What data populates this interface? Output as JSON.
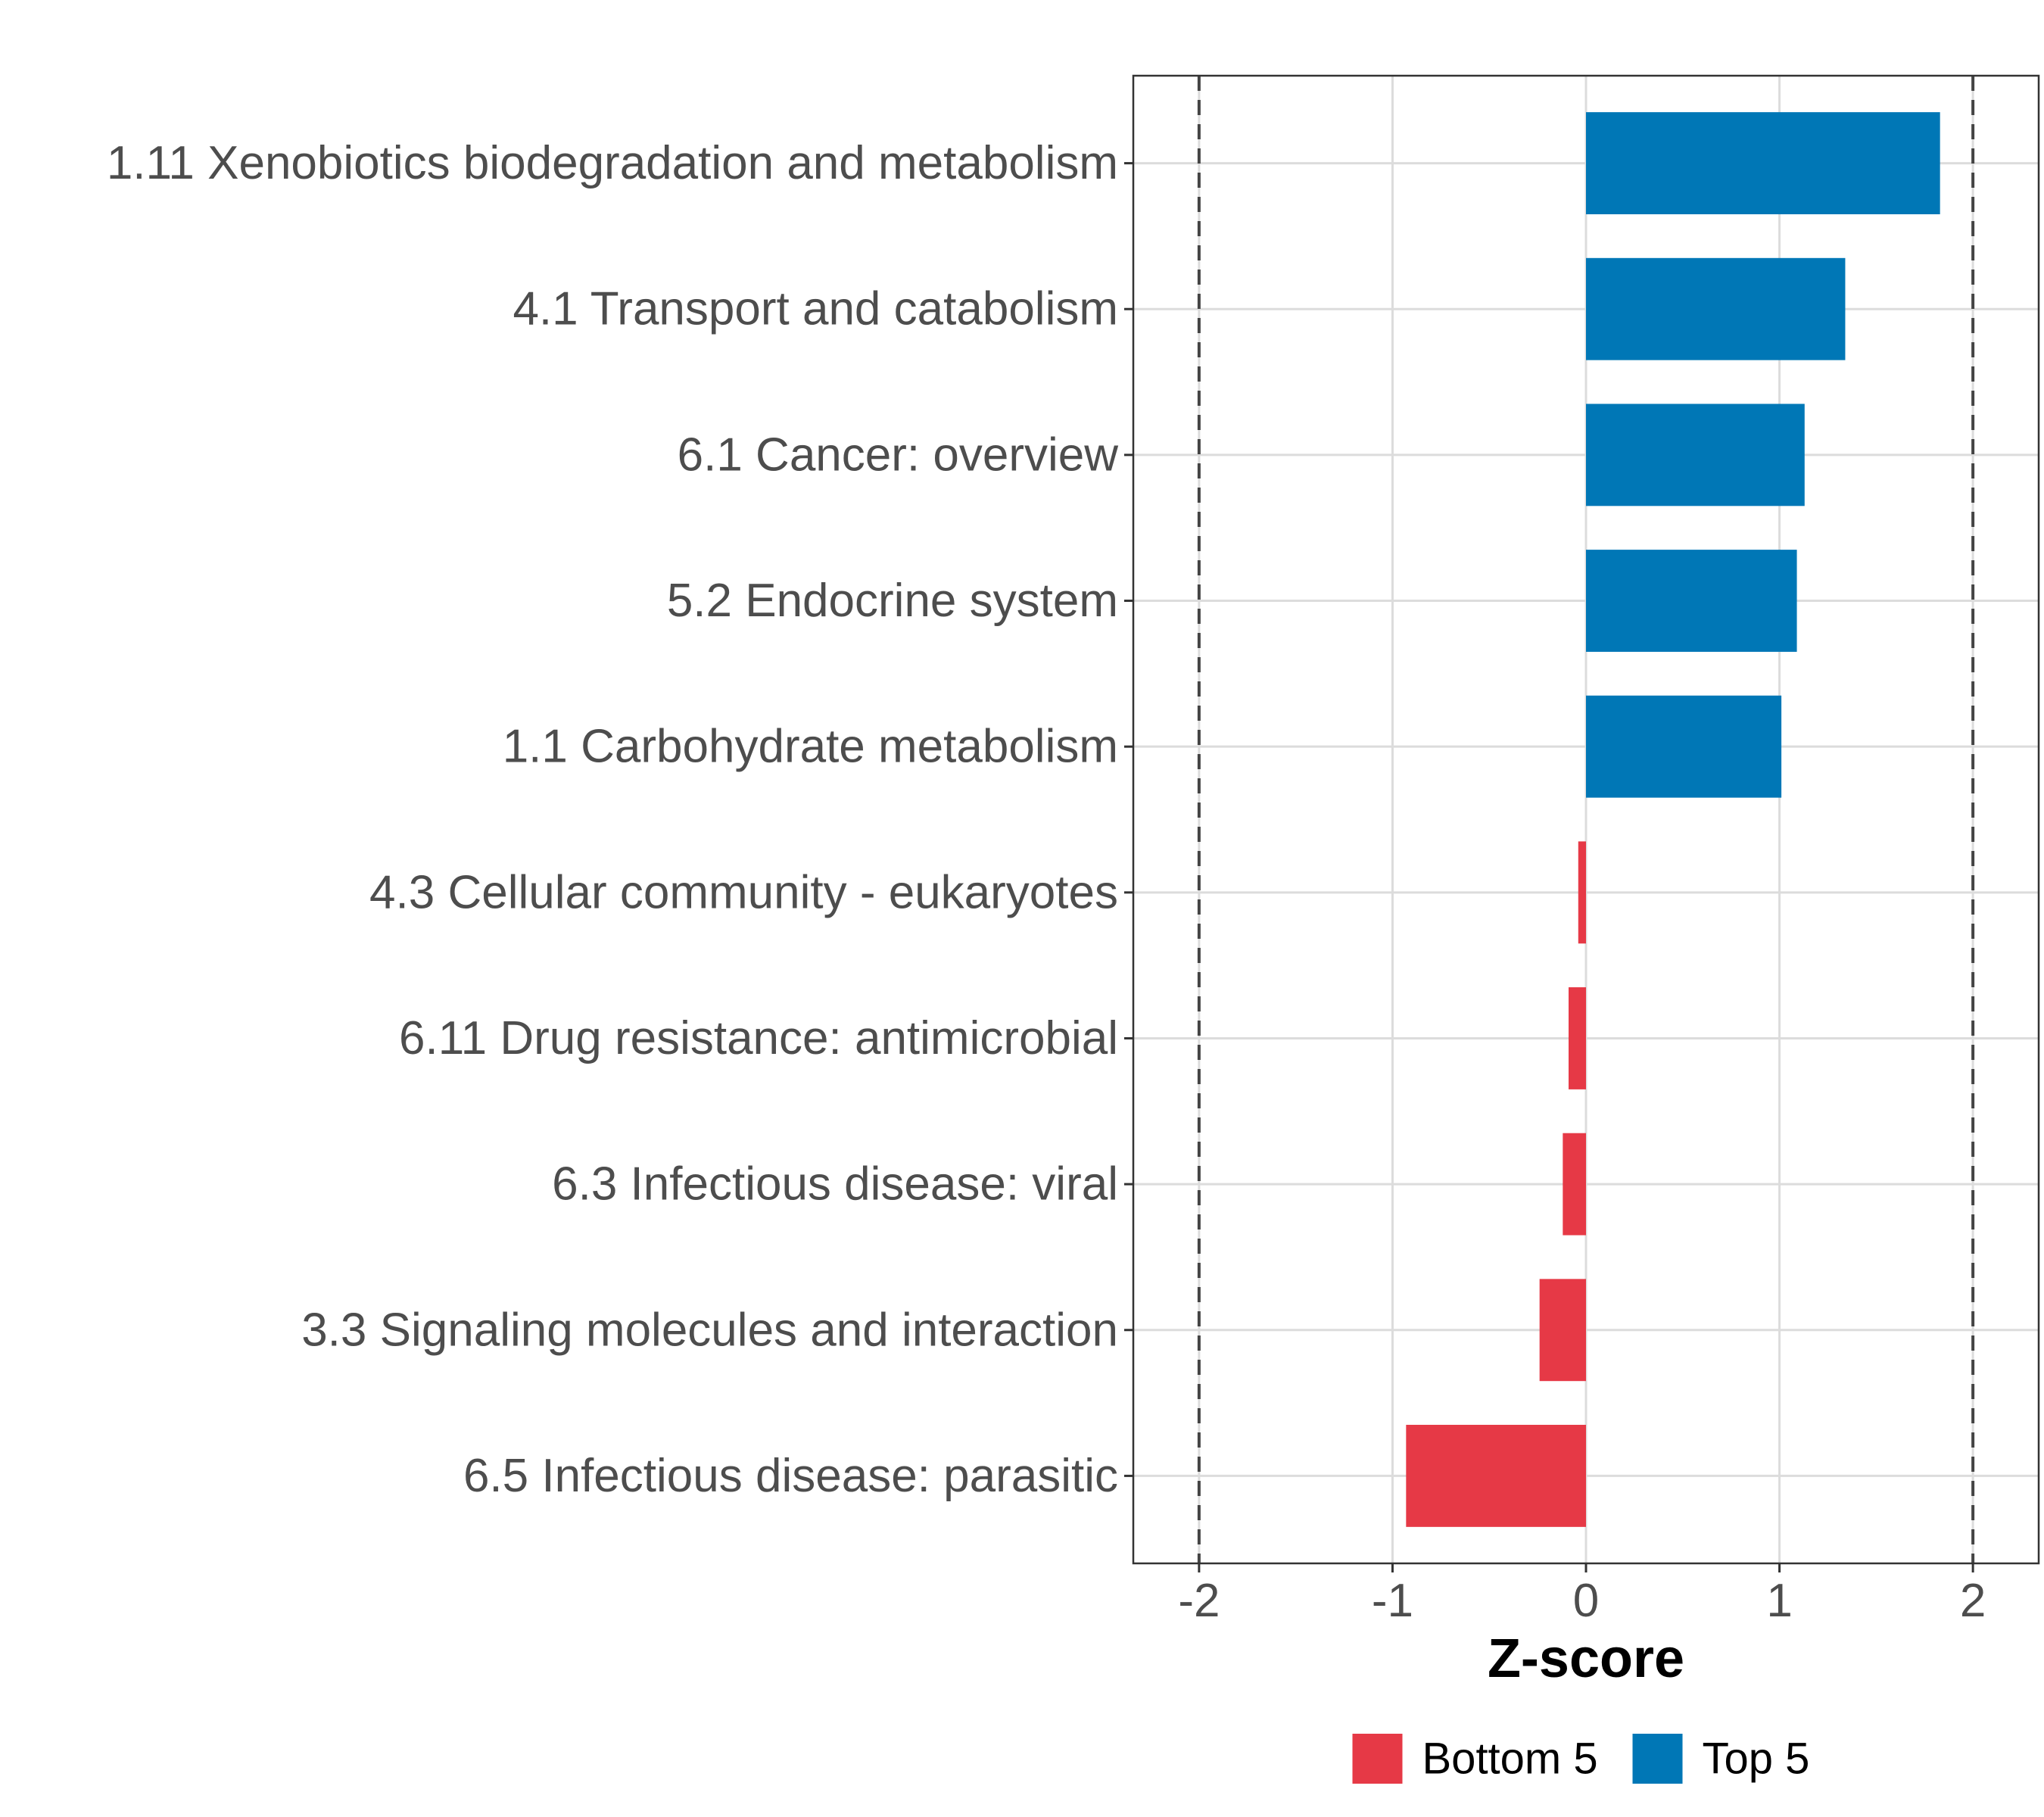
{
  "chart_data": {
    "type": "bar",
    "orientation": "horizontal",
    "categories": [
      "1.11 Xenobiotics biodegradation and metabolism",
      "4.1 Transport and catabolism",
      "6.1 Cancer: overview",
      "5.2 Endocrine system",
      "1.1 Carbohydrate metabolism",
      "4.3 Cellular community - eukaryotes",
      "6.11 Drug resistance: antimicrobial",
      "6.3 Infectious disease: viral",
      "3.3 Signaling molecules and interaction",
      "6.5 Infectious disease: parasitic"
    ],
    "values": [
      1.83,
      1.34,
      1.13,
      1.09,
      1.01,
      -0.04,
      -0.09,
      -0.12,
      -0.24,
      -0.93
    ],
    "groups": [
      "Top 5",
      "Top 5",
      "Top 5",
      "Top 5",
      "Top 5",
      "Bottom 5",
      "Bottom 5",
      "Bottom 5",
      "Bottom 5",
      "Bottom 5"
    ],
    "xlabel": "Z-score",
    "ylabel": "",
    "xlim": [
      -2.34,
      2.34
    ],
    "xticks": [
      -2,
      -1,
      0,
      1,
      2
    ],
    "xtick_labels": [
      "-2",
      "-1",
      "0",
      "1",
      "2"
    ],
    "reference_lines": [
      -2,
      2
    ],
    "grid": true,
    "legend": {
      "position": "bottom",
      "items": [
        {
          "label": "Bottom 5",
          "color": "#e63946"
        },
        {
          "label": "Top 5",
          "color": "#0077b6"
        }
      ]
    },
    "colors": {
      "Bottom 5": "#e63946",
      "Top 5": "#0077b6"
    }
  }
}
